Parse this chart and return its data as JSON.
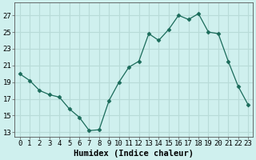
{
  "x": [
    0,
    1,
    2,
    3,
    4,
    5,
    6,
    7,
    8,
    9,
    10,
    11,
    12,
    13,
    14,
    15,
    16,
    17,
    18,
    19,
    20,
    21,
    22,
    23
  ],
  "y": [
    20.0,
    19.2,
    18.0,
    17.5,
    17.2,
    15.8,
    14.8,
    13.2,
    13.3,
    16.8,
    19.0,
    20.8,
    21.5,
    24.8,
    24.0,
    25.3,
    27.0,
    26.5,
    27.2,
    25.0,
    24.8,
    21.5,
    18.5,
    16.3
  ],
  "xlabel": "Humidex (Indice chaleur)",
  "ylim": [
    12.5,
    28.5
  ],
  "xlim": [
    -0.5,
    23.5
  ],
  "yticks": [
    13,
    15,
    17,
    19,
    21,
    23,
    25,
    27
  ],
  "xticks": [
    0,
    1,
    2,
    3,
    4,
    5,
    6,
    7,
    8,
    9,
    10,
    11,
    12,
    13,
    14,
    15,
    16,
    17,
    18,
    19,
    20,
    21,
    22,
    23
  ],
  "line_color": "#1a6b5a",
  "marker": "D",
  "marker_size": 2.5,
  "bg_color": "#cff0ee",
  "grid_color": "#b8dbd8",
  "tick_label_fontsize": 6.5,
  "xlabel_fontsize": 7.5
}
